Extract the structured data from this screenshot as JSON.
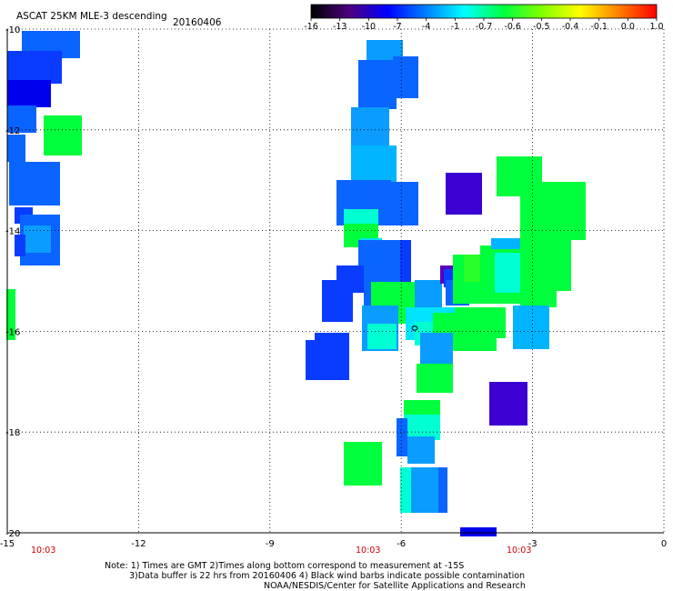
{
  "header": {
    "title": "ASCAT 25KM MLE-3 descending",
    "date": "20160406"
  },
  "colorbar": {
    "labels": [
      "-16",
      "-13",
      "-10",
      "-7",
      "-4",
      "-1",
      "-0.7",
      "-0.6",
      "-0.5",
      "-0.4",
      "-0.1",
      "0.0",
      "1.0"
    ],
    "colors": [
      "#000000",
      "#4c007f",
      "#0000ff",
      "#0080ff",
      "#00ffff",
      "#00ff40",
      "#80ff00",
      "#ffff00",
      "#ff8000",
      "#ff0000"
    ]
  },
  "axes": {
    "x_ticks": [
      "-15",
      "-12",
      "-9",
      "-6",
      "-3",
      "0"
    ],
    "y_ticks": [
      "-10",
      "-12",
      "-14",
      "-16",
      "-18",
      "-20"
    ],
    "x_range": [
      -15,
      0
    ],
    "y_range": [
      -20,
      -10
    ],
    "grid": true
  },
  "times": [
    "10:03",
    "10:03",
    "10:03"
  ],
  "notes": {
    "line1": "Note: 1) Times are GMT 2)Times along bottom correspond to measurement at -15S",
    "line2": "3)Data buffer is 22 hrs from 20160406 4) Black wind barbs indicate possible contamination",
    "line3": "NOAA/NESDIS/Center for Satellite Applications and Research"
  },
  "swath_colors": {
    "deep_blue": "#0000ee",
    "blue": "#0a3cff",
    "mid_blue": "#0a64ff",
    "light_blue": "#0a9cff",
    "sky": "#00b4ff",
    "cyan": "#00e4ff",
    "aqua": "#00ffd2",
    "green": "#00ff3c",
    "lime": "#28ff28",
    "purple": "#3c00d2",
    "violet": "#5a00be"
  }
}
